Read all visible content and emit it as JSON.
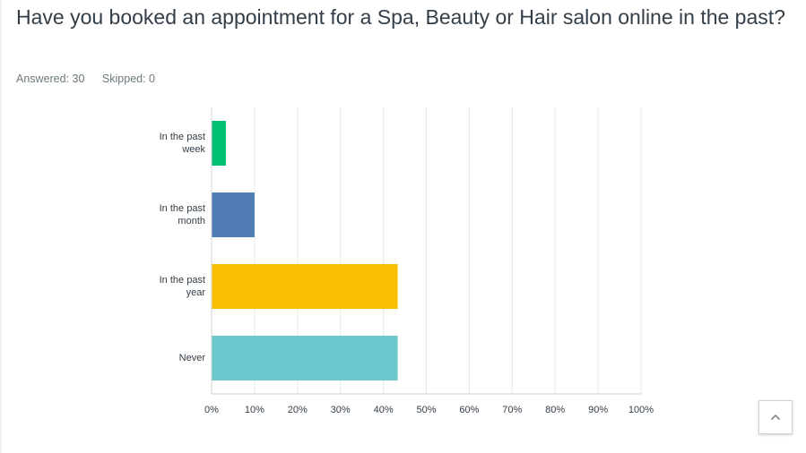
{
  "question": {
    "title": "Have you booked an appointment for a Spa, Beauty or Hair salon online in the past?"
  },
  "stats": {
    "answered": "Answered: 30",
    "skipped": "Skipped: 0"
  },
  "chart_data": {
    "type": "bar",
    "orientation": "horizontal",
    "categories": [
      [
        "In the past",
        "week"
      ],
      [
        "In the past",
        "month"
      ],
      [
        "In the past",
        "year"
      ],
      [
        "Never"
      ]
    ],
    "values": [
      3.33,
      10.0,
      43.33,
      43.33
    ],
    "colors": [
      "#00bf6f",
      "#507cb6",
      "#f9be00",
      "#6bc8cd"
    ],
    "xlim": [
      0,
      100
    ],
    "ticks": [
      0,
      10,
      20,
      30,
      40,
      50,
      60,
      70,
      80,
      90,
      100
    ],
    "tick_labels": [
      "0%",
      "10%",
      "20%",
      "30%",
      "40%",
      "50%",
      "60%",
      "70%",
      "80%",
      "90%",
      "100%"
    ],
    "grid": true
  },
  "scroll_top": {
    "icon": "chevron-up-icon"
  }
}
